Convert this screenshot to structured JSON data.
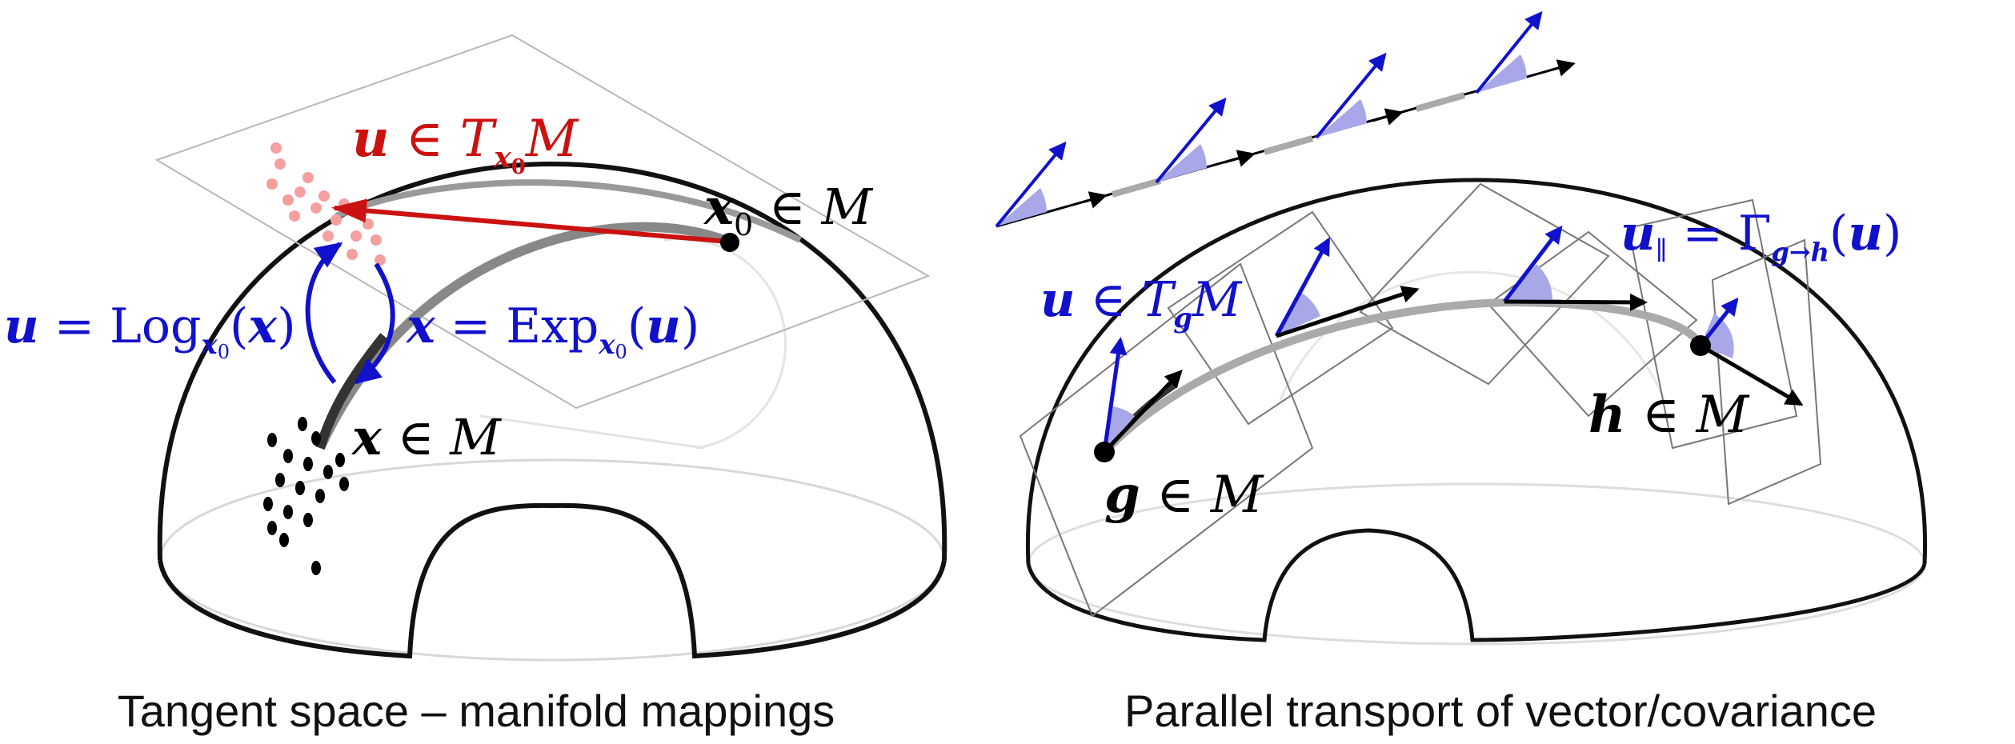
{
  "colors": {
    "red": "#cc1111",
    "blue": "#1111cc",
    "black": "#000000",
    "light_blue_fill": "#a8a8e8",
    "pink_points": "#f4a0a0",
    "grey_plane": "#b0b0b0"
  },
  "left_panel": {
    "caption": "Tangent space – manifold mappings",
    "tangent_label": {
      "a": "u",
      "b": " ∈ ",
      "c": "T",
      "d": "x",
      "e": "0",
      "f": "M"
    },
    "base_point_label": {
      "a": "x",
      "b": "0",
      "c": " ∈ ",
      "d": "M"
    },
    "point_label": {
      "a": "x",
      "b": " ∈ ",
      "c": "M"
    },
    "log_label": {
      "a": "u",
      "b": " = Log",
      "c": "x",
      "d": "0",
      "e": "(",
      "f": "x",
      "g": ")"
    },
    "exp_label": {
      "a": "x",
      "b": " = Exp",
      "c": "x",
      "d": "0",
      "e": "(",
      "f": "u",
      "g": ")"
    },
    "icons": [
      "hemisphere-manifold-icon",
      "tangent-plane-icon",
      "log-map-arrow-icon",
      "exp-map-arrow-icon"
    ]
  },
  "right_panel": {
    "caption": "Parallel transport of vector/covariance",
    "g_label": {
      "a": "g",
      "b": " ∈ ",
      "c": "M"
    },
    "h_label": {
      "a": "h",
      "b": " ∈ ",
      "c": "M"
    },
    "tangent_g_label": {
      "a": "u",
      "b": " ∈ ",
      "c": "T",
      "d": "g",
      "e": "M"
    },
    "transported_label": {
      "a": "u",
      "b": "∥",
      "c": " = Γ",
      "d": "g→h",
      "e": "(",
      "f": "u",
      "g": ")"
    },
    "icons": [
      "hemisphere-manifold-icon",
      "tangent-plane-icon",
      "transported-vector-icon",
      "flat-transport-line-icon"
    ]
  }
}
